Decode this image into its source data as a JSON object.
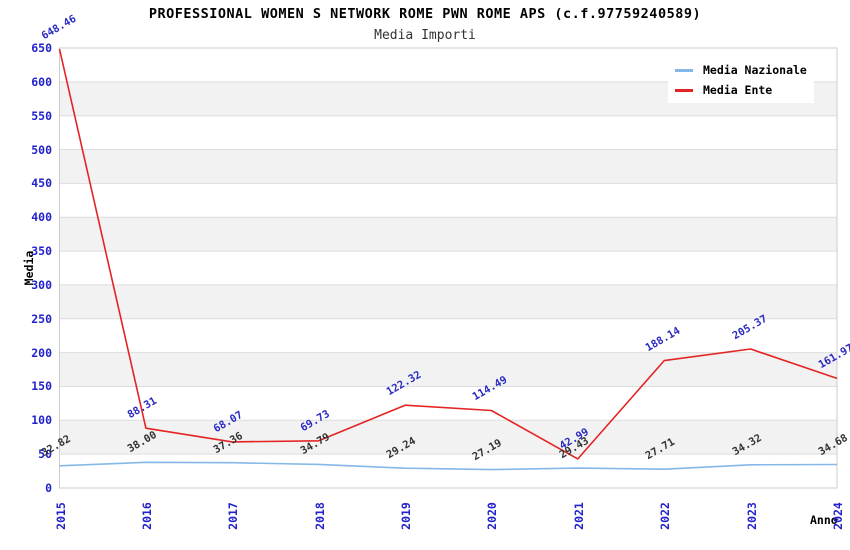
{
  "chart_data": {
    "type": "line",
    "title": "PROFESSIONAL WOMEN S NETWORK ROME PWN ROME APS (c.f.97759240589)",
    "subtitle": "Media Importi",
    "xlabel": "Anno",
    "ylabel": "Media",
    "ylim": [
      0,
      650
    ],
    "yticks": [
      0,
      50,
      100,
      150,
      200,
      250,
      300,
      350,
      400,
      450,
      500,
      550,
      600,
      650
    ],
    "categories": [
      "2015",
      "2016",
      "2017",
      "2018",
      "2019",
      "2020",
      "2021",
      "2022",
      "2023",
      "2024"
    ],
    "series": [
      {
        "name": "Media Nazionale",
        "color": "#85b8e8",
        "label_color": "#333333",
        "values": [
          32.82,
          38.0,
          37.36,
          34.79,
          29.24,
          27.19,
          29.43,
          27.71,
          34.32,
          34.68
        ]
      },
      {
        "name": "Media Ente",
        "color": "#e42424",
        "label_color": "#2a2ac0",
        "values": [
          648.46,
          88.31,
          68.07,
          69.73,
          122.32,
          114.49,
          42.99,
          188.14,
          205.37,
          161.97
        ]
      }
    ],
    "legend_position": "top-right",
    "grid": true,
    "colors": {
      "tick_label": "#2222cc",
      "band": "#f2f2f2",
      "gridline": "#dddddd",
      "border": "#cccccc",
      "background": "#ffffff"
    }
  }
}
